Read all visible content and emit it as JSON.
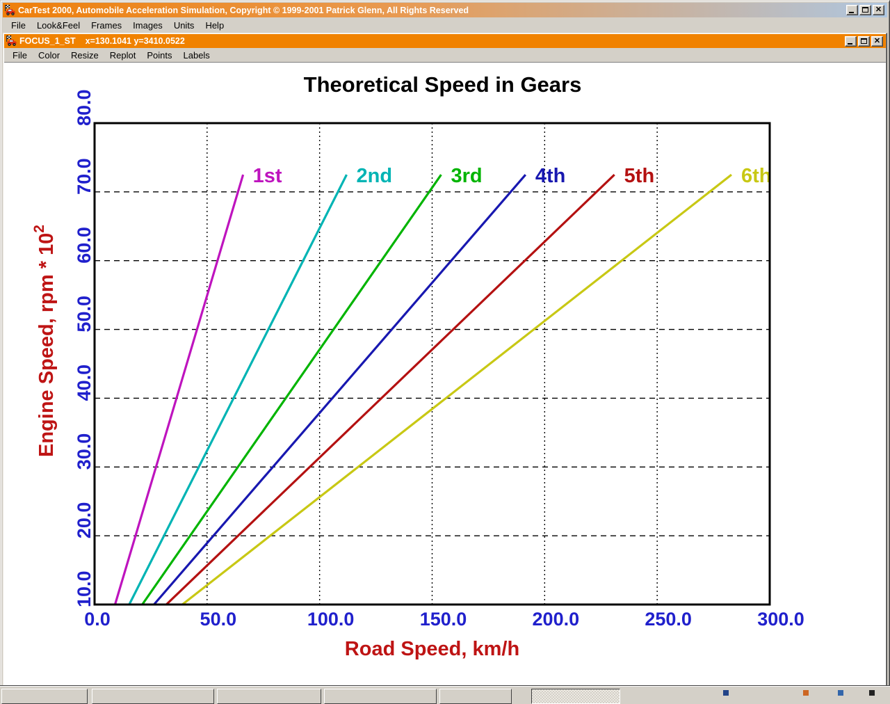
{
  "app_window": {
    "title": "CarTest 2000, Automobile Acceleration Simulation, Copyright © 1999-2001 Patrick Glenn, All Rights Reserved",
    "menu": [
      "File",
      "Look&Feel",
      "Frames",
      "Images",
      "Units",
      "Help"
    ],
    "window_buttons": [
      "minimize",
      "maximize",
      "close"
    ]
  },
  "plot_window": {
    "title": "FOCUS_1_ST",
    "cursor_coords": "x=130.1041 y=3410.0522",
    "menu": [
      "File",
      "Color",
      "Resize",
      "Replot",
      "Points",
      "Labels"
    ],
    "window_buttons": [
      "minimize",
      "maximize",
      "close"
    ]
  },
  "chart_data": {
    "type": "line",
    "title": "Theoretical Speed in Gears",
    "xlabel": "Road Speed, km/h",
    "ylabel": {
      "text": "Engine Speed, rpm * 10",
      "sup": "2"
    },
    "xlim": [
      0,
      300
    ],
    "ylim": [
      10,
      80
    ],
    "xticks": [
      0,
      50,
      100,
      150,
      200,
      250,
      300
    ],
    "xtick_labels": [
      "0.0",
      "50.0",
      "100.0",
      "150.0",
      "200.0",
      "250.0",
      "300.0"
    ],
    "yticks": [
      10,
      20,
      30,
      40,
      50,
      60,
      70,
      80
    ],
    "ytick_labels": [
      "10.0",
      "20.0",
      "30.0",
      "40.0",
      "50.0",
      "60.0",
      "70.0",
      "80.0"
    ],
    "grid": true,
    "legend_position": "inline-labels-at-line-tops",
    "series": [
      {
        "name": "1st",
        "color": "#BE14BE",
        "points": [
          [
            9.1,
            10
          ],
          [
            66,
            72.5
          ]
        ]
      },
      {
        "name": "2nd",
        "color": "#00B4B4",
        "points": [
          [
            15.4,
            10
          ],
          [
            112,
            72.5
          ]
        ]
      },
      {
        "name": "3rd",
        "color": "#00B400",
        "points": [
          [
            21.2,
            10
          ],
          [
            154,
            72.5
          ]
        ]
      },
      {
        "name": "4th",
        "color": "#1818B0",
        "points": [
          [
            26.4,
            10
          ],
          [
            191.5,
            72.5
          ]
        ]
      },
      {
        "name": "5th",
        "color": "#B41111",
        "points": [
          [
            31.9,
            10
          ],
          [
            231,
            72.5
          ]
        ]
      },
      {
        "name": "6th",
        "color": "#C8C814",
        "points": [
          [
            39.0,
            10
          ],
          [
            283,
            72.5
          ]
        ]
      }
    ],
    "colors": {
      "tick_labels": "#2020CC",
      "axis_titles": "#BE1414",
      "title": "#000000",
      "axis_box": "#000000",
      "grid": "#000000"
    }
  }
}
